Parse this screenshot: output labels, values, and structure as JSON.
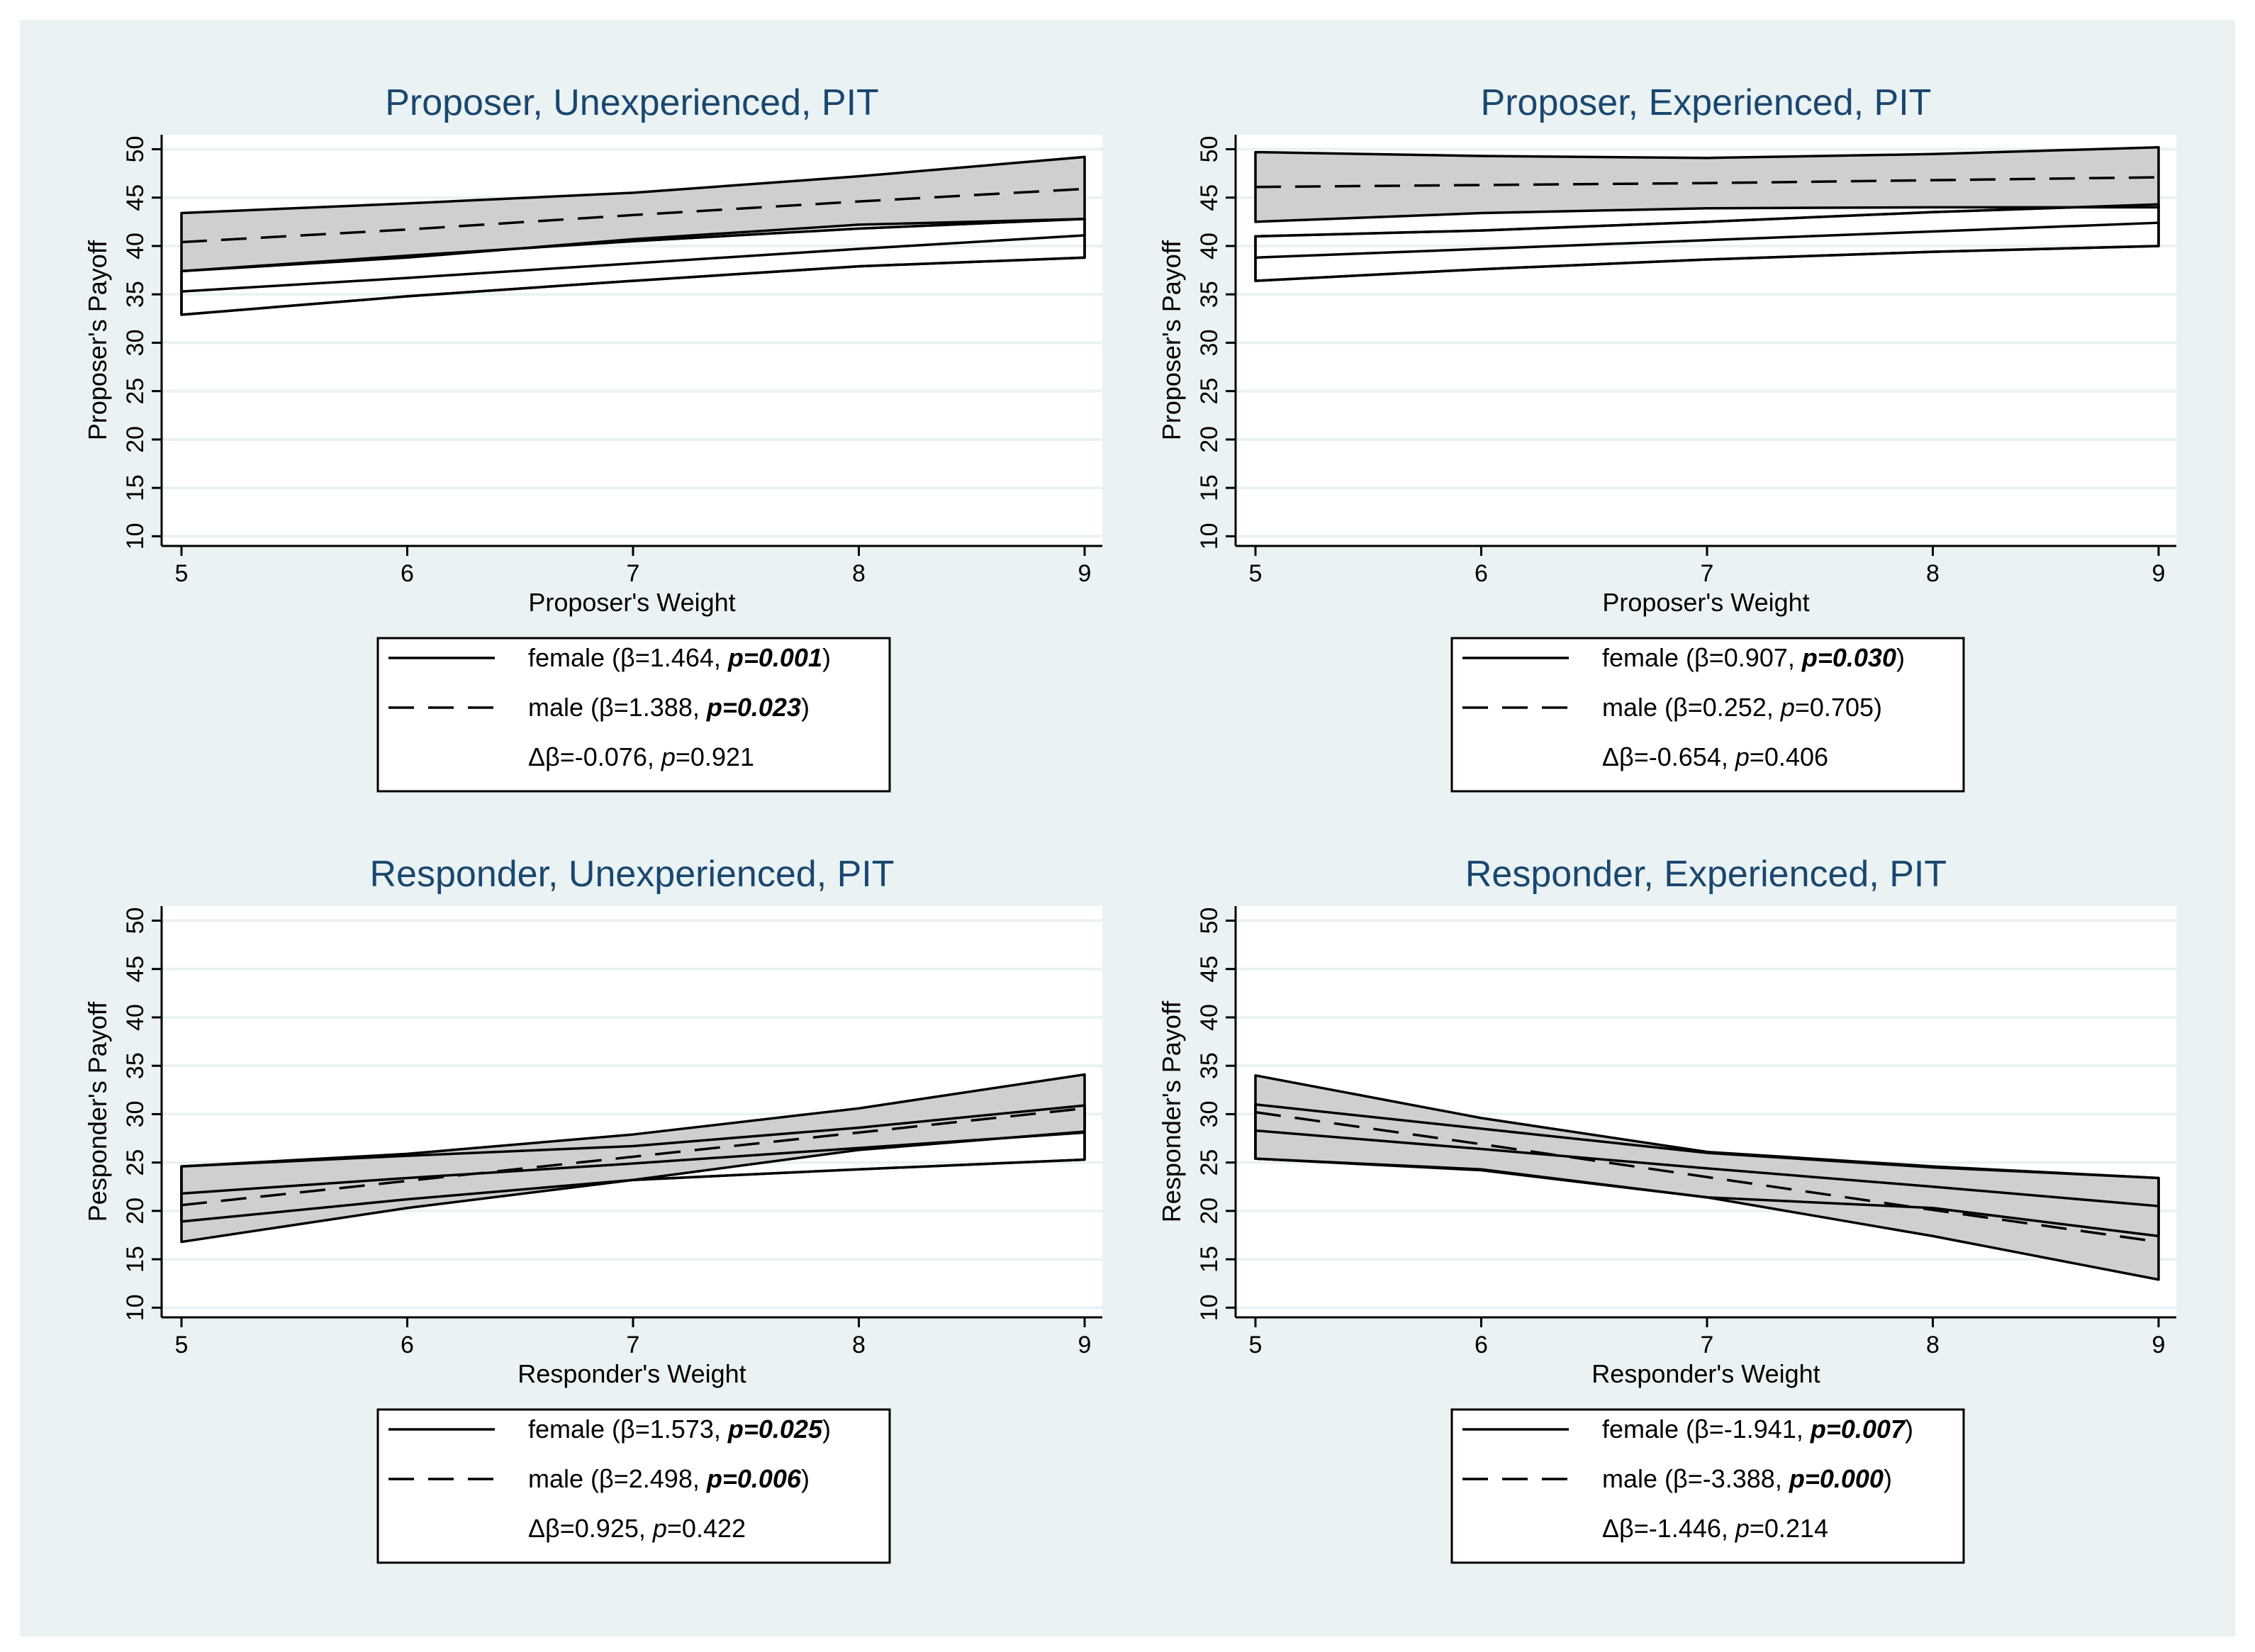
{
  "chart_data": [
    {
      "type": "line",
      "title": "Proposer, Unexperienced, PIT",
      "xlabel": "Proposer's Weight",
      "ylabel": "Proposer's Payoff",
      "x": [
        5,
        6,
        7,
        8,
        9
      ],
      "xticks": [
        "5",
        "6",
        "7",
        "8",
        "9"
      ],
      "yticks": [
        "10",
        "15",
        "20",
        "25",
        "30",
        "35",
        "40",
        "45",
        "50"
      ],
      "ylim": [
        9,
        51.5
      ],
      "series": [
        {
          "name": "female",
          "style": "solid",
          "values": [
            35.3,
            36.7,
            38.2,
            39.7,
            41.1
          ],
          "ci_low": [
            32.9,
            34.8,
            36.4,
            37.9,
            38.8
          ],
          "ci_high": [
            37.4,
            39.0,
            40.5,
            41.8,
            42.8
          ]
        },
        {
          "name": "male",
          "style": "dashed",
          "values": [
            40.4,
            41.7,
            43.2,
            44.6,
            45.9
          ],
          "ci_low": [
            37.4,
            38.8,
            40.7,
            42.2,
            42.8
          ],
          "ci_high": [
            43.4,
            44.4,
            45.5,
            47.2,
            49.2
          ]
        }
      ],
      "legend": {
        "female": {
          "pre": "female (β=1.464, ",
          "p": "p=0.001",
          "post": ")",
          "bold": true
        },
        "male": {
          "pre": "male (β=1.388, ",
          "p": "p=0.023",
          "post": ")",
          "bold": true
        },
        "diff": {
          "pre": "Δβ=-0.076, ",
          "p": "p",
          "post": "=0.921"
        }
      }
    },
    {
      "type": "line",
      "title": "Proposer, Experienced, PIT",
      "xlabel": "Proposer's Weight",
      "ylabel": "Proposer's Payoff",
      "x": [
        5,
        6,
        7,
        8,
        9
      ],
      "xticks": [
        "5",
        "6",
        "7",
        "8",
        "9"
      ],
      "yticks": [
        "10",
        "15",
        "20",
        "25",
        "30",
        "35",
        "40",
        "45",
        "50"
      ],
      "ylim": [
        9,
        51.5
      ],
      "series": [
        {
          "name": "female",
          "style": "solid",
          "values": [
            38.8,
            39.7,
            40.6,
            41.5,
            42.4
          ],
          "ci_low": [
            36.4,
            37.6,
            38.6,
            39.4,
            40.0
          ],
          "ci_high": [
            41.0,
            41.6,
            42.5,
            43.5,
            44.3
          ]
        },
        {
          "name": "male",
          "style": "dashed",
          "values": [
            46.1,
            46.3,
            46.5,
            46.8,
            47.1
          ],
          "ci_low": [
            42.5,
            43.4,
            43.9,
            44.0,
            44.0
          ],
          "ci_high": [
            49.7,
            49.3,
            49.1,
            49.5,
            50.2
          ]
        }
      ],
      "legend": {
        "female": {
          "pre": "female (β=0.907, ",
          "p": "p=0.030",
          "post": ")",
          "bold": true
        },
        "male": {
          "pre": "male (β=0.252, ",
          "p": "p",
          "post": "=0.705)",
          "bold": false
        },
        "diff": {
          "pre": "Δβ=-0.654, ",
          "p": "p",
          "post": "=0.406"
        }
      }
    },
    {
      "type": "line",
      "title": "Responder, Unexperienced, PIT",
      "xlabel": "Responder's Weight",
      "ylabel": "Pesponder's Payoff",
      "x": [
        5,
        6,
        7,
        8,
        9
      ],
      "xticks": [
        "5",
        "6",
        "7",
        "8",
        "9"
      ],
      "yticks": [
        "10",
        "15",
        "20",
        "25",
        "30",
        "35",
        "40",
        "45",
        "50"
      ],
      "ylim": [
        9,
        51.5
      ],
      "series": [
        {
          "name": "female",
          "style": "solid",
          "values": [
            21.8,
            23.4,
            24.9,
            26.5,
            28.1
          ],
          "ci_low": [
            18.9,
            21.2,
            23.2,
            24.3,
            25.3
          ],
          "ci_high": [
            24.6,
            25.7,
            26.7,
            28.6,
            30.9
          ]
        },
        {
          "name": "male",
          "style": "dashed",
          "values": [
            20.6,
            23.1,
            25.6,
            28.1,
            30.6
          ],
          "ci_low": [
            16.8,
            20.3,
            23.2,
            26.3,
            28.2
          ],
          "ci_high": [
            24.6,
            25.9,
            27.9,
            30.6,
            34.1
          ]
        }
      ],
      "legend": {
        "female": {
          "pre": "female (β=1.573, ",
          "p": "p=0.025",
          "post": ")",
          "bold": true
        },
        "male": {
          "pre": "male (β=2.498, ",
          "p": "p=0.006",
          "post": ")",
          "bold": true
        },
        "diff": {
          "pre": "Δβ=0.925, ",
          "p": "p",
          "post": "=0.422"
        }
      }
    },
    {
      "type": "line",
      "title": "Responder, Experienced, PIT",
      "xlabel": "Responder's Weight",
      "ylabel": "Responder's Payoff",
      "x": [
        5,
        6,
        7,
        8,
        9
      ],
      "xticks": [
        "5",
        "6",
        "7",
        "8",
        "9"
      ],
      "yticks": [
        "10",
        "15",
        "20",
        "25",
        "30",
        "35",
        "40",
        "45",
        "50"
      ],
      "ylim": [
        9,
        51.5
      ],
      "series": [
        {
          "name": "female",
          "style": "solid",
          "values": [
            28.3,
            26.4,
            24.4,
            22.5,
            20.5
          ],
          "ci_low": [
            25.4,
            24.3,
            21.4,
            20.3,
            17.4
          ],
          "ci_high": [
            31.0,
            28.5,
            26.0,
            24.5,
            23.4
          ]
        },
        {
          "name": "male",
          "style": "dashed",
          "values": [
            30.2,
            26.9,
            23.5,
            20.1,
            16.8
          ],
          "ci_low": [
            25.4,
            24.2,
            21.4,
            17.4,
            12.9
          ],
          "ci_high": [
            34.0,
            29.6,
            26.1,
            24.6,
            23.4
          ]
        }
      ],
      "legend": {
        "female": {
          "pre": "female (β=-1.941, ",
          "p": "p=0.007",
          "post": ")",
          "bold": true
        },
        "male": {
          "pre": "male (β=-3.388, ",
          "p": "p=0.000",
          "post": ")",
          "bold": true
        },
        "diff": {
          "pre": "Δβ=-1.446, ",
          "p": "p",
          "post": "=0.214"
        }
      }
    }
  ]
}
